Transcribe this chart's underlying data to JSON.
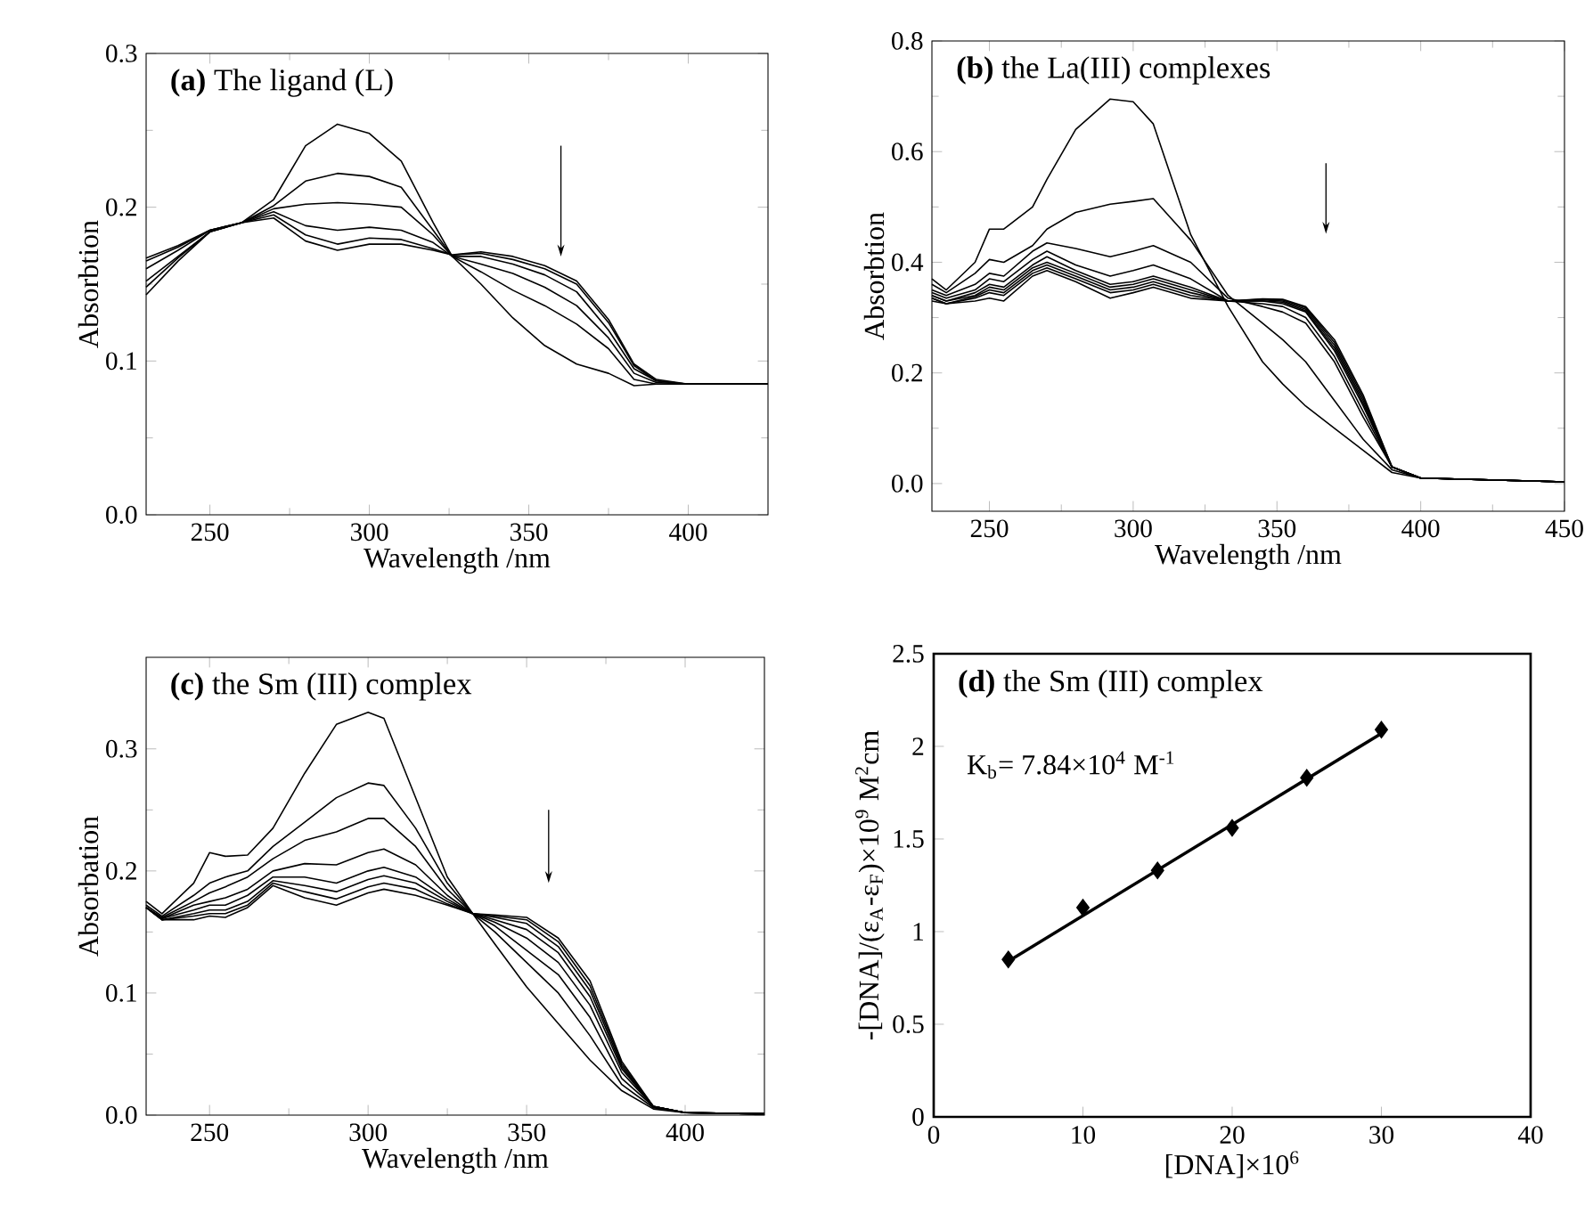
{
  "chart_data": [
    {
      "type": "line",
      "title": "**(a)** The ligand (L)",
      "xlabel": "Wavelength /nm",
      "ylabel": "Absorbtion",
      "xlim": [
        230,
        425
      ],
      "ylim": [
        0,
        0.3
      ],
      "xticks": [
        250,
        300,
        350,
        400
      ],
      "yticks": [
        {
          "value": 0,
          "label": "0.0"
        },
        {
          "value": 0.1,
          "label": "0.1"
        },
        {
          "value": 0.2,
          "label": "0.2"
        },
        {
          "value": 0.3,
          "label": "0.3"
        }
      ],
      "x": [
        230,
        240,
        250,
        260,
        270,
        280,
        290,
        300,
        310,
        320,
        326,
        335,
        345,
        355,
        365,
        375,
        383,
        390,
        400,
        425
      ],
      "series": [
        {
          "color": "#000000",
          "values": [
            0.143,
            0.165,
            0.184,
            0.19,
            0.205,
            0.24,
            0.254,
            0.248,
            0.23,
            0.19,
            0.168,
            0.15,
            0.128,
            0.11,
            0.098,
            0.092,
            0.084,
            0.085,
            0.085,
            0.085
          ]
        },
        {
          "color": "#000000",
          "values": [
            0.148,
            0.167,
            0.184,
            0.19,
            0.201,
            0.217,
            0.222,
            0.22,
            0.213,
            0.185,
            0.168,
            0.158,
            0.146,
            0.136,
            0.124,
            0.108,
            0.088,
            0.085,
            0.085,
            0.085
          ]
        },
        {
          "color": "#000000",
          "values": [
            0.152,
            0.168,
            0.184,
            0.19,
            0.199,
            0.202,
            0.203,
            0.202,
            0.2,
            0.182,
            0.168,
            0.163,
            0.157,
            0.148,
            0.136,
            0.115,
            0.092,
            0.086,
            0.085,
            0.085
          ]
        },
        {
          "color": "#000000",
          "values": [
            0.16,
            0.172,
            0.185,
            0.19,
            0.197,
            0.188,
            0.185,
            0.187,
            0.185,
            0.177,
            0.168,
            0.168,
            0.163,
            0.156,
            0.145,
            0.12,
            0.095,
            0.087,
            0.085,
            0.085
          ]
        },
        {
          "color": "#000000",
          "values": [
            0.165,
            0.174,
            0.185,
            0.19,
            0.195,
            0.182,
            0.176,
            0.18,
            0.179,
            0.173,
            0.169,
            0.17,
            0.166,
            0.16,
            0.15,
            0.125,
            0.097,
            0.087,
            0.085,
            0.085
          ]
        },
        {
          "color": "#000000",
          "values": [
            0.167,
            0.175,
            0.185,
            0.19,
            0.193,
            0.178,
            0.172,
            0.176,
            0.176,
            0.172,
            0.169,
            0.171,
            0.168,
            0.162,
            0.152,
            0.127,
            0.098,
            0.088,
            0.085,
            0.085
          ]
        }
      ]
    },
    {
      "type": "line",
      "title": "**(b)**  the La(III) complexes",
      "xlabel": "Wavelength /nm",
      "ylabel": "Absorbtion",
      "xlim": [
        230,
        450
      ],
      "ylim": [
        -0.05,
        0.8
      ],
      "xticks": [
        250,
        300,
        350,
        400,
        450
      ],
      "yticks": [
        {
          "value": 0,
          "label": "0.0"
        },
        {
          "value": 0.2,
          "label": "0.2"
        },
        {
          "value": 0.4,
          "label": "0.4"
        },
        {
          "value": 0.6,
          "label": "0.6"
        },
        {
          "value": 0.8,
          "label": "0.8"
        }
      ],
      "x": [
        230,
        235,
        245,
        250,
        255,
        265,
        270,
        280,
        292,
        300,
        307,
        320,
        333,
        345,
        352,
        360,
        370,
        380,
        390,
        400,
        450
      ],
      "series": [
        {
          "color": "#000000",
          "values": [
            0.37,
            0.35,
            0.4,
            0.46,
            0.46,
            0.5,
            0.55,
            0.64,
            0.695,
            0.69,
            0.65,
            0.45,
            0.32,
            0.22,
            0.18,
            0.14,
            0.1,
            0.06,
            0.02,
            0.01,
            0.003
          ]
        },
        {
          "color": "#000000",
          "values": [
            0.36,
            0.345,
            0.38,
            0.405,
            0.4,
            0.43,
            0.46,
            0.49,
            0.505,
            0.51,
            0.515,
            0.44,
            0.34,
            0.29,
            0.26,
            0.22,
            0.15,
            0.08,
            0.025,
            0.01,
            0.003
          ]
        },
        {
          "color": "#000000",
          "values": [
            0.35,
            0.34,
            0.36,
            0.38,
            0.375,
            0.42,
            0.435,
            0.425,
            0.41,
            0.42,
            0.43,
            0.4,
            0.335,
            0.32,
            0.31,
            0.29,
            0.22,
            0.12,
            0.03,
            0.01,
            0.003
          ]
        },
        {
          "color": "#000000",
          "values": [
            0.345,
            0.335,
            0.35,
            0.37,
            0.365,
            0.405,
            0.42,
            0.395,
            0.375,
            0.385,
            0.395,
            0.37,
            0.33,
            0.325,
            0.32,
            0.3,
            0.23,
            0.13,
            0.03,
            0.01,
            0.003
          ]
        },
        {
          "color": "#000000",
          "values": [
            0.34,
            0.33,
            0.345,
            0.36,
            0.355,
            0.395,
            0.41,
            0.385,
            0.36,
            0.365,
            0.375,
            0.355,
            0.33,
            0.33,
            0.325,
            0.31,
            0.24,
            0.14,
            0.03,
            0.01,
            0.003
          ]
        },
        {
          "color": "#000000",
          "values": [
            0.34,
            0.33,
            0.34,
            0.355,
            0.35,
            0.39,
            0.4,
            0.38,
            0.355,
            0.36,
            0.37,
            0.35,
            0.33,
            0.33,
            0.328,
            0.312,
            0.245,
            0.145,
            0.03,
            0.01,
            0.003
          ]
        },
        {
          "color": "#000000",
          "values": [
            0.335,
            0.325,
            0.338,
            0.35,
            0.345,
            0.385,
            0.395,
            0.375,
            0.35,
            0.355,
            0.365,
            0.345,
            0.33,
            0.332,
            0.33,
            0.315,
            0.25,
            0.15,
            0.03,
            0.01,
            0.003
          ]
        },
        {
          "color": "#000000",
          "values": [
            0.335,
            0.325,
            0.335,
            0.345,
            0.34,
            0.38,
            0.39,
            0.37,
            0.345,
            0.35,
            0.36,
            0.34,
            0.33,
            0.333,
            0.332,
            0.318,
            0.255,
            0.155,
            0.03,
            0.01,
            0.003
          ]
        },
        {
          "color": "#000000",
          "values": [
            0.33,
            0.325,
            0.33,
            0.335,
            0.33,
            0.375,
            0.385,
            0.365,
            0.335,
            0.345,
            0.355,
            0.335,
            0.33,
            0.334,
            0.333,
            0.32,
            0.26,
            0.16,
            0.03,
            0.01,
            0.003
          ]
        }
      ]
    },
    {
      "type": "line",
      "title": "**(c)**  the Sm (III) complex",
      "xlabel": "Wavelength /nm",
      "ylabel": "Absorbation",
      "xlim": [
        230,
        425
      ],
      "ylim": [
        0,
        0.375
      ],
      "xticks": [
        250,
        300,
        350,
        400
      ],
      "yticks": [
        {
          "value": 0,
          "label": "0.0"
        },
        {
          "value": 0.1,
          "label": "0.1"
        },
        {
          "value": 0.2,
          "label": "0.2"
        },
        {
          "value": 0.3,
          "label": "0.3"
        }
      ],
      "x": [
        230,
        235,
        245,
        250,
        255,
        262,
        270,
        280,
        290,
        300,
        305,
        315,
        325,
        333,
        340,
        350,
        360,
        370,
        380,
        390,
        400,
        425
      ],
      "series": [
        {
          "color": "#000000",
          "values": [
            0.175,
            0.165,
            0.19,
            0.215,
            0.212,
            0.213,
            0.235,
            0.28,
            0.32,
            0.33,
            0.325,
            0.26,
            0.195,
            0.165,
            0.14,
            0.105,
            0.075,
            0.045,
            0.02,
            0.005,
            0.002,
            0.001
          ]
        },
        {
          "color": "#000000",
          "values": [
            0.172,
            0.163,
            0.18,
            0.19,
            0.195,
            0.2,
            0.22,
            0.24,
            0.26,
            0.272,
            0.27,
            0.235,
            0.19,
            0.165,
            0.15,
            0.125,
            0.1,
            0.065,
            0.025,
            0.006,
            0.002,
            0.001
          ]
        },
        {
          "color": "#000000",
          "values": [
            0.17,
            0.162,
            0.175,
            0.182,
            0.187,
            0.195,
            0.21,
            0.225,
            0.232,
            0.243,
            0.243,
            0.22,
            0.185,
            0.165,
            0.155,
            0.135,
            0.115,
            0.08,
            0.03,
            0.007,
            0.002,
            0.001
          ]
        },
        {
          "color": "#000000",
          "values": [
            0.17,
            0.161,
            0.172,
            0.175,
            0.178,
            0.185,
            0.2,
            0.206,
            0.205,
            0.215,
            0.218,
            0.205,
            0.18,
            0.165,
            0.158,
            0.145,
            0.125,
            0.09,
            0.035,
            0.007,
            0.002,
            0.001
          ]
        },
        {
          "color": "#000000",
          "values": [
            0.17,
            0.161,
            0.168,
            0.172,
            0.172,
            0.18,
            0.195,
            0.195,
            0.19,
            0.2,
            0.203,
            0.195,
            0.177,
            0.165,
            0.16,
            0.152,
            0.133,
            0.097,
            0.038,
            0.007,
            0.002,
            0.001
          ]
        },
        {
          "color": "#000000",
          "values": [
            0.17,
            0.16,
            0.165,
            0.168,
            0.168,
            0.175,
            0.192,
            0.188,
            0.183,
            0.193,
            0.196,
            0.19,
            0.175,
            0.165,
            0.162,
            0.157,
            0.138,
            0.102,
            0.04,
            0.007,
            0.002,
            0.001
          ]
        },
        {
          "color": "#000000",
          "values": [
            0.17,
            0.16,
            0.163,
            0.165,
            0.165,
            0.172,
            0.19,
            0.183,
            0.177,
            0.187,
            0.19,
            0.185,
            0.173,
            0.165,
            0.163,
            0.16,
            0.142,
            0.106,
            0.042,
            0.007,
            0.002,
            0.001
          ]
        },
        {
          "color": "#000000",
          "values": [
            0.17,
            0.16,
            0.16,
            0.163,
            0.162,
            0.17,
            0.188,
            0.178,
            0.172,
            0.182,
            0.185,
            0.18,
            0.172,
            0.165,
            0.164,
            0.162,
            0.145,
            0.11,
            0.044,
            0.007,
            0.002,
            0.001
          ]
        }
      ]
    },
    {
      "type": "scatter",
      "title": "**(d)** the Sm (III) complex",
      "xlabel": "[DNA]×10$^{6}$",
      "ylabel": "-[DNA]/(ε$_{A}$-ε$_{F}$)×10$^{9}$ M$^{2}$cm",
      "xlim": [
        0,
        40
      ],
      "ylim": [
        0,
        2.5
      ],
      "xticks": [
        0,
        10,
        20,
        30,
        40
      ],
      "yticks": [
        0,
        0.5,
        1,
        1.5,
        2,
        2.5
      ],
      "annotations": [
        "K$_{b}$= 7.84×10$^{4}$ M$^{-1}$"
      ],
      "x": [
        5,
        10,
        15,
        20,
        25,
        30
      ],
      "series": [
        {
          "color": "#000000",
          "marker": "diamond",
          "values": [
            0.85,
            1.13,
            1.33,
            1.56,
            1.83,
            2.09
          ]
        },
        {
          "type": "line",
          "color": "#000000",
          "marker": "none",
          "x": [
            5,
            30
          ],
          "values": [
            0.84,
            2.07
          ]
        }
      ]
    }
  ]
}
